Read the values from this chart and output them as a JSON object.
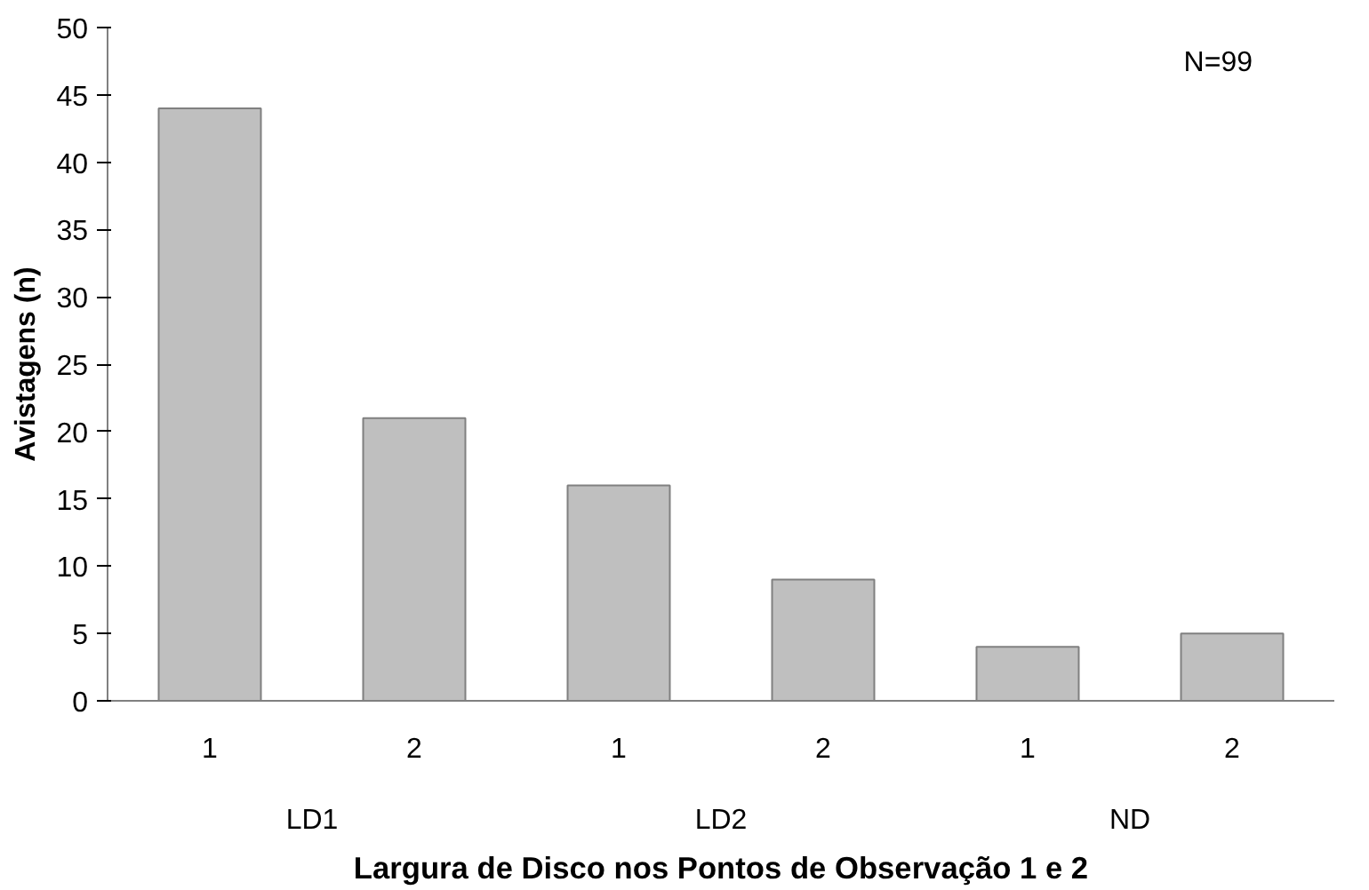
{
  "chart_data": {
    "type": "bar",
    "xlabel": "Largura de Disco nos Pontos de Observação 1 e 2",
    "ylabel": "Avistagens (n)",
    "categories": [
      "1",
      "2",
      "1",
      "2",
      "1",
      "2"
    ],
    "values": [
      44,
      21,
      16,
      9,
      4,
      5
    ],
    "color": "#bfbfbf",
    "ylim": [
      0,
      50
    ],
    "yticks": [
      0,
      5,
      10,
      15,
      20,
      25,
      30,
      35,
      40,
      45,
      50
    ],
    "grid": false,
    "annotations": [
      "N=99",
      "LD1",
      "LD2",
      "ND"
    ]
  }
}
